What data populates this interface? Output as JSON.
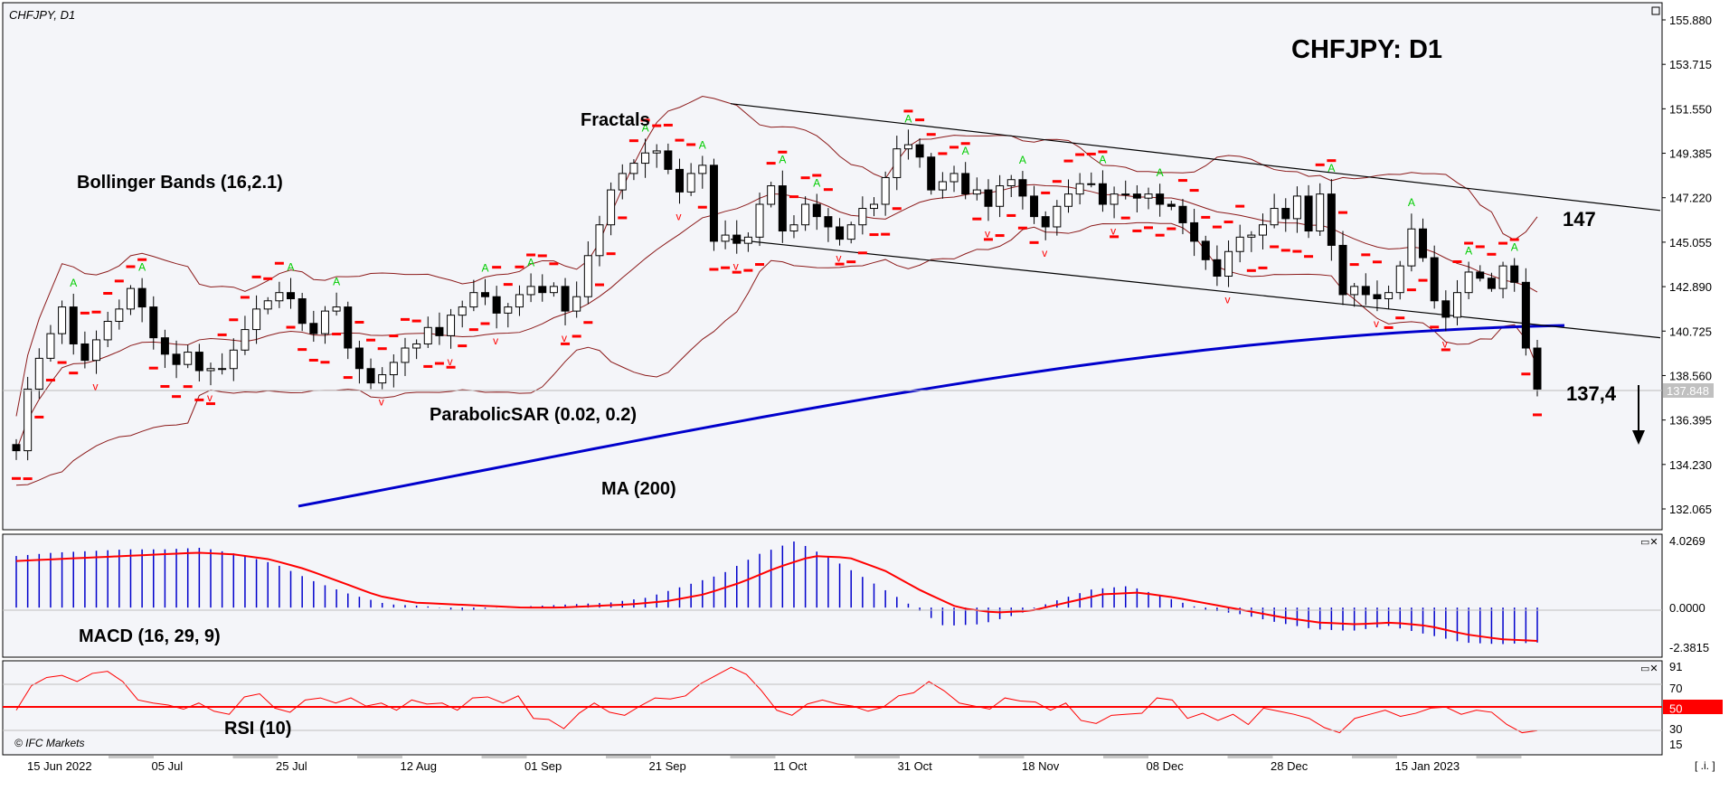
{
  "header": {
    "symbol_label": "CHFJPY, D1",
    "big_title": "CHFJPY: D1",
    "copyright": "© IFC Markets"
  },
  "annotations": {
    "bollinger": "Bollinger Bands (16,2.1)",
    "fractals": "Fractals",
    "parabolic": "ParabolicSAR (0.02, 0.2)",
    "ma": "MA (200)",
    "macd": "MACD (16, 29, 9)",
    "rsi": "RSI (10)",
    "target_upper": "147",
    "target_lower": "137,4"
  },
  "price_axis": {
    "ticks": [
      "155.880",
      "153.715",
      "151.550",
      "149.385",
      "147.220",
      "145.055",
      "142.890",
      "140.725",
      "138.560",
      "136.395",
      "134.230",
      "132.065"
    ],
    "current": "137.848"
  },
  "macd_axis": {
    "ticks": [
      "4.0269",
      "0.0000",
      "-2.3815"
    ]
  },
  "rsi_axis": {
    "ticks": [
      "91",
      "70",
      "50",
      "30",
      "15"
    ]
  },
  "time_axis": {
    "labels": [
      "15 Jun 2022",
      "05 Jul",
      "25 Jul",
      "12 Aug",
      "01 Sep",
      "21 Sep",
      "11 Oct",
      "31 Oct",
      "18 Nov",
      "08 Dec",
      "28 Dec",
      "15 Jan 2023"
    ]
  },
  "window_controls": {
    "corner": "[ .i. ]"
  },
  "colors": {
    "bollinger": "#8b1a1a",
    "sar": "#ff0000",
    "ma": "#0000cc",
    "macd_hist": "#0000cc",
    "macd_signal": "#ff0000",
    "rsi": "#ff0000",
    "fractal_up": "#00cc00",
    "fractal_down": "#ff0000",
    "trendline": "#000000",
    "rsi_level_50_badge": "#ff0000"
  },
  "chart_data": [
    {
      "type": "candlestick",
      "title": "CHFJPY: D1",
      "x_range": [
        "15 Jun 2022",
        "15 Jan 2023"
      ],
      "ylim": [
        132.065,
        155.88
      ],
      "last_price": 137.848,
      "indicators": [
        "Bollinger Bands (16,2.1)",
        "Fractals",
        "ParabolicSAR (0.02, 0.2)",
        "MA (200)"
      ],
      "targets": {
        "upper": 147,
        "lower": 137.4
      },
      "close": [
        134.9,
        137.9,
        139.4,
        140.6,
        141.9,
        140.1,
        139.3,
        140.3,
        141.2,
        141.8,
        142.8,
        141.9,
        140.4,
        139.6,
        139.1,
        139.7,
        138.8,
        138.9,
        138.9,
        139.8,
        140.8,
        141.8,
        142.2,
        142.6,
        142.3,
        141.1,
        140.6,
        141.7,
        141.9,
        139.9,
        138.9,
        138.2,
        138.6,
        139.2,
        139.9,
        140.1,
        140.9,
        140.5,
        141.5,
        141.9,
        142.6,
        142.4,
        141.6,
        141.9,
        142.5,
        142.9,
        142.6,
        142.9,
        141.7,
        142.4,
        144.4,
        145.9,
        147.6,
        148.4,
        148.9,
        149.4,
        149.5,
        148.6,
        147.5,
        148.4,
        148.8,
        145.1,
        145.4,
        145.0,
        145.3,
        146.9,
        147.8,
        145.6,
        145.9,
        146.9,
        146.3,
        145.8,
        145.2,
        145.9,
        146.7,
        146.9,
        148.2,
        149.6,
        149.8,
        149.2,
        147.6,
        148.0,
        148.4,
        147.4,
        147.6,
        146.8,
        147.8,
        148.1,
        147.3,
        146.3,
        145.8,
        146.8,
        147.4,
        147.9,
        147.9,
        146.9,
        147.4,
        147.4,
        147.2,
        147.4,
        146.9,
        146.8,
        146.0,
        145.1,
        144.2,
        143.4,
        144.6,
        145.3,
        145.4,
        145.9,
        146.7,
        146.2,
        147.3,
        145.6,
        147.4,
        144.9,
        142.5,
        142.9,
        142.5,
        142.3,
        142.6,
        143.9,
        145.7,
        144.3,
        142.2,
        141.4,
        142.6,
        143.6,
        143.3,
        142.8,
        143.9,
        143.1,
        139.9,
        137.9
      ]
    },
    {
      "type": "bar",
      "title": "MACD (16, 29, 9)",
      "ylim": [
        -2.3815,
        4.0269
      ],
      "zero_level": 0.0,
      "histogram_trend": [
        3.1,
        3.3,
        3.4,
        3.5,
        3.5,
        3.6,
        3.2,
        2.6,
        1.6,
        0.8,
        0.2,
        0.1,
        -0.2,
        0.0,
        0.1,
        0.2,
        0.3,
        0.6,
        1.3,
        2.0,
        3.2,
        4.0,
        2.9,
        1.6,
        0.3,
        -1.1,
        -1.0,
        -0.4,
        0.4,
        1.1,
        1.3,
        0.6,
        -0.1,
        -0.4,
        -0.9,
        -1.3,
        -1.4,
        -1.1,
        -1.6,
        -2.1,
        -2.2,
        -2.1
      ],
      "signal_trend": [
        2.8,
        2.9,
        3.0,
        3.1,
        3.2,
        3.3,
        3.2,
        2.9,
        2.3,
        1.5,
        0.7,
        0.3,
        0.2,
        0.1,
        0.0,
        0.0,
        0.1,
        0.2,
        0.4,
        0.8,
        1.5,
        2.4,
        3.1,
        3.0,
        2.2,
        1.0,
        0.0,
        -0.3,
        -0.2,
        0.3,
        0.8,
        0.9,
        0.6,
        0.2,
        -0.2,
        -0.6,
        -0.9,
        -1.0,
        -0.9,
        -1.1,
        -1.6,
        -1.9,
        -2.0
      ]
    },
    {
      "type": "line",
      "title": "RSI (10)",
      "ylim": [
        15,
        91
      ],
      "levels": [
        70,
        50,
        30
      ],
      "values": [
        48,
        72,
        80,
        82,
        76,
        84,
        86,
        76,
        58,
        55,
        53,
        49,
        55,
        47,
        44,
        61,
        64,
        50,
        46,
        58,
        60,
        55,
        60,
        52,
        55,
        48,
        58,
        54,
        55,
        48,
        60,
        61,
        55,
        62,
        40,
        39,
        30,
        45,
        55,
        46,
        43,
        52,
        60,
        59,
        62,
        74,
        82,
        90,
        83,
        67,
        48,
        43,
        54,
        58,
        54,
        52,
        47,
        51,
        62,
        65,
        76,
        67,
        55,
        52,
        49,
        60,
        57,
        56,
        48,
        55,
        38,
        35,
        43,
        44,
        45,
        60,
        58,
        40,
        45,
        38,
        44,
        34,
        50,
        47,
        44,
        40,
        31,
        26,
        40,
        44,
        48,
        42,
        45,
        50,
        51,
        44,
        48,
        46,
        34,
        26,
        28
      ]
    }
  ]
}
